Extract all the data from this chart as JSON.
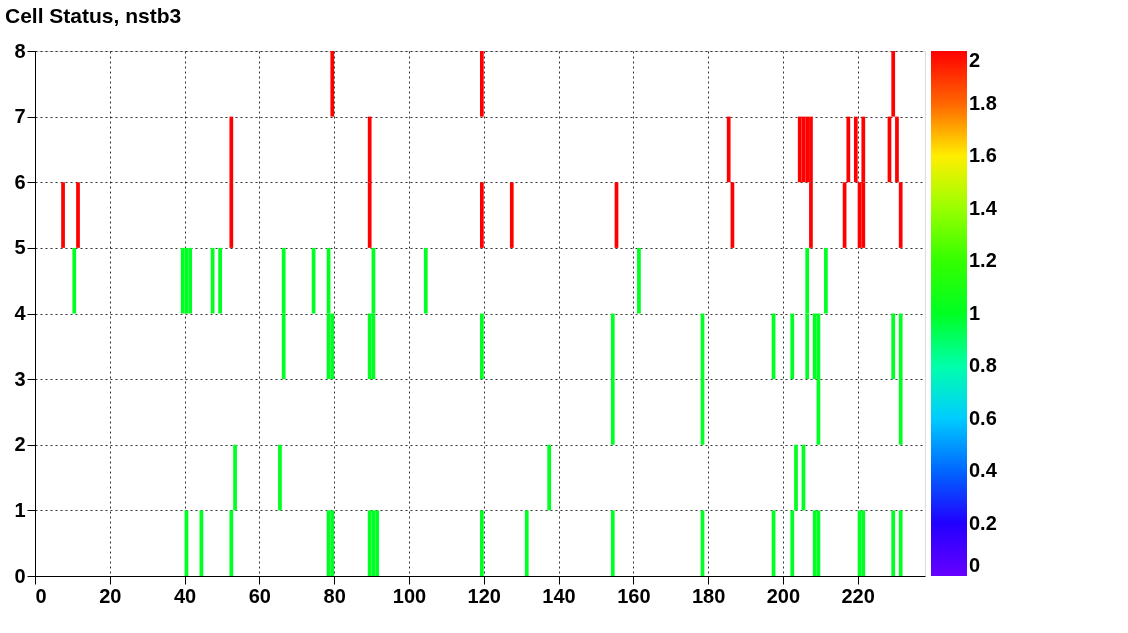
{
  "chart_data": {
    "type": "heatmap",
    "title": "Cell Status, nstb3",
    "cells": [
      [
        null,
        null,
        null,
        null,
        null,
        null,
        null,
        null,
        null,
        null,
        null,
        null,
        null,
        null,
        null,
        null,
        null,
        null,
        null,
        null,
        null,
        null,
        null,
        null,
        null,
        null,
        null,
        null,
        null,
        null,
        null,
        null,
        null,
        null,
        null,
        null,
        null,
        null,
        null,
        null,
        null,
        null,
        null,
        null,
        null,
        null,
        null,
        null,
        null,
        null,
        null,
        null,
        null,
        null,
        null,
        null,
        null,
        null,
        null,
        null,
        null,
        null,
        null,
        null,
        null,
        null,
        null,
        null,
        null,
        null,
        null,
        null,
        null,
        null,
        null,
        null,
        null,
        null,
        null,
        2,
        null,
        null,
        null,
        null,
        null,
        null,
        null,
        null,
        null,
        null,
        null,
        null,
        null,
        null,
        null,
        null,
        null,
        null,
        null,
        null,
        null,
        null,
        null,
        null,
        null,
        null,
        null,
        null,
        null,
        null,
        null,
        null,
        null,
        null,
        null,
        null,
        null,
        null,
        null,
        2,
        null,
        null,
        null,
        null,
        null,
        null,
        null,
        null,
        null,
        null,
        null,
        null,
        null,
        null,
        null,
        null,
        null,
        null,
        null,
        null,
        null,
        null,
        null,
        null,
        null,
        null,
        null,
        null,
        null,
        null,
        null,
        null,
        null,
        null,
        null,
        null,
        null,
        null,
        null,
        null,
        null,
        null,
        null,
        null,
        null,
        null,
        null,
        null,
        null,
        null,
        null,
        null,
        null,
        null,
        null,
        null,
        null,
        null,
        null,
        null,
        null,
        null,
        null,
        null,
        null,
        null,
        null,
        null,
        null,
        null,
        null,
        null,
        null,
        null,
        null,
        null,
        null,
        null,
        null,
        null,
        null,
        null,
        null,
        null,
        null,
        null,
        null,
        null,
        null,
        null,
        null,
        null,
        null,
        null,
        null,
        null,
        null,
        null,
        null,
        null,
        null,
        null,
        null,
        null,
        null,
        null,
        null,
        null,
        null,
        2,
        null,
        null,
        null,
        null,
        null,
        null,
        null,
        null
      ],
      [
        null,
        null,
        null,
        null,
        null,
        null,
        null,
        null,
        null,
        null,
        null,
        null,
        null,
        null,
        null,
        null,
        null,
        null,
        null,
        null,
        null,
        null,
        null,
        null,
        null,
        null,
        null,
        null,
        null,
        null,
        null,
        null,
        null,
        null,
        null,
        null,
        null,
        null,
        null,
        null,
        null,
        null,
        null,
        null,
        null,
        null,
        null,
        null,
        null,
        null,
        null,
        null,
        2,
        null,
        null,
        null,
        null,
        null,
        null,
        null,
        null,
        null,
        null,
        null,
        null,
        null,
        null,
        null,
        null,
        null,
        null,
        null,
        null,
        null,
        null,
        null,
        null,
        null,
        null,
        null,
        null,
        null,
        null,
        null,
        null,
        null,
        null,
        null,
        null,
        2,
        null,
        null,
        null,
        null,
        null,
        null,
        null,
        null,
        null,
        null,
        null,
        null,
        null,
        null,
        null,
        null,
        null,
        null,
        null,
        null,
        null,
        null,
        null,
        null,
        null,
        null,
        null,
        null,
        null,
        null,
        null,
        null,
        null,
        null,
        null,
        null,
        null,
        null,
        null,
        null,
        null,
        null,
        null,
        null,
        null,
        null,
        null,
        null,
        null,
        null,
        null,
        null,
        null,
        null,
        null,
        null,
        null,
        null,
        null,
        null,
        null,
        null,
        null,
        null,
        null,
        null,
        null,
        null,
        null,
        null,
        null,
        null,
        null,
        null,
        null,
        null,
        null,
        null,
        null,
        null,
        null,
        null,
        null,
        null,
        null,
        null,
        null,
        null,
        null,
        null,
        null,
        null,
        null,
        null,
        null,
        2,
        null,
        null,
        null,
        null,
        null,
        null,
        null,
        null,
        null,
        null,
        null,
        null,
        null,
        null,
        null,
        null,
        null,
        null,
        2,
        2,
        2,
        2,
        null,
        null,
        null,
        null,
        null,
        null,
        null,
        null,
        null,
        2,
        null,
        2,
        null,
        2,
        null,
        null,
        null,
        null,
        null,
        null,
        2,
        null,
        2,
        null,
        null,
        null,
        null,
        null,
        null,
        null
      ],
      [
        null,
        null,
        null,
        null,
        null,
        null,
        null,
        2,
        null,
        null,
        null,
        2,
        null,
        null,
        null,
        null,
        null,
        null,
        null,
        null,
        null,
        null,
        null,
        null,
        null,
        null,
        null,
        null,
        null,
        null,
        null,
        null,
        null,
        null,
        null,
        null,
        null,
        null,
        null,
        null,
        null,
        null,
        null,
        null,
        null,
        null,
        null,
        null,
        null,
        null,
        null,
        null,
        2,
        null,
        null,
        null,
        null,
        null,
        null,
        null,
        null,
        null,
        null,
        null,
        null,
        null,
        null,
        null,
        null,
        null,
        null,
        null,
        null,
        null,
        null,
        null,
        null,
        null,
        null,
        null,
        null,
        null,
        null,
        null,
        null,
        null,
        null,
        null,
        null,
        2,
        null,
        null,
        null,
        null,
        null,
        null,
        null,
        null,
        null,
        null,
        null,
        null,
        null,
        null,
        null,
        null,
        null,
        null,
        null,
        null,
        null,
        null,
        null,
        null,
        null,
        null,
        null,
        null,
        null,
        2,
        null,
        null,
        null,
        null,
        null,
        null,
        null,
        2,
        null,
        null,
        null,
        null,
        null,
        null,
        null,
        null,
        null,
        null,
        null,
        null,
        null,
        null,
        null,
        null,
        null,
        null,
        null,
        null,
        null,
        null,
        null,
        null,
        null,
        null,
        null,
        2,
        null,
        null,
        null,
        null,
        null,
        null,
        null,
        null,
        null,
        null,
        null,
        null,
        null,
        null,
        null,
        null,
        null,
        null,
        null,
        null,
        null,
        null,
        null,
        null,
        null,
        null,
        null,
        null,
        null,
        null,
        2,
        null,
        null,
        null,
        null,
        null,
        null,
        null,
        null,
        null,
        null,
        null,
        null,
        null,
        null,
        null,
        null,
        null,
        null,
        null,
        null,
        2,
        null,
        null,
        null,
        null,
        null,
        null,
        null,
        null,
        2,
        null,
        null,
        null,
        2,
        2,
        null,
        null,
        null,
        null,
        null,
        null,
        null,
        null,
        null,
        2,
        null,
        null,
        null,
        null,
        null,
        null
      ],
      [
        null,
        null,
        null,
        null,
        null,
        null,
        null,
        null,
        null,
        null,
        1,
        null,
        null,
        null,
        null,
        null,
        null,
        null,
        null,
        null,
        null,
        null,
        null,
        null,
        null,
        null,
        null,
        null,
        null,
        null,
        null,
        null,
        null,
        null,
        null,
        null,
        null,
        null,
        null,
        1,
        1,
        1,
        null,
        null,
        null,
        null,
        null,
        1,
        null,
        1,
        null,
        null,
        null,
        null,
        null,
        null,
        null,
        null,
        null,
        null,
        null,
        null,
        null,
        null,
        null,
        null,
        1,
        null,
        null,
        null,
        null,
        null,
        null,
        null,
        1,
        null,
        null,
        null,
        1,
        null,
        null,
        null,
        null,
        null,
        null,
        null,
        null,
        null,
        null,
        null,
        1,
        null,
        null,
        null,
        null,
        null,
        null,
        null,
        null,
        null,
        null,
        null,
        null,
        null,
        1,
        null,
        null,
        null,
        null,
        null,
        null,
        null,
        null,
        null,
        null,
        null,
        null,
        null,
        null,
        null,
        null,
        null,
        null,
        null,
        null,
        null,
        null,
        null,
        null,
        null,
        null,
        null,
        null,
        null,
        null,
        null,
        null,
        null,
        null,
        null,
        null,
        null,
        null,
        null,
        null,
        null,
        null,
        null,
        null,
        null,
        null,
        null,
        null,
        null,
        null,
        null,
        null,
        null,
        null,
        null,
        null,
        1,
        null,
        null,
        null,
        null,
        null,
        null,
        null,
        null,
        null,
        null,
        null,
        null,
        null,
        null,
        null,
        null,
        null,
        null,
        null,
        null,
        null,
        null,
        null,
        null,
        null,
        null,
        null,
        null,
        null,
        null,
        null,
        null,
        null,
        null,
        null,
        null,
        null,
        null,
        null,
        null,
        null,
        null,
        null,
        null,
        1,
        null,
        null,
        null,
        null,
        1,
        null,
        null,
        null,
        null,
        null,
        null,
        null,
        null,
        null,
        null,
        null,
        null,
        null,
        null,
        null,
        null,
        null,
        null,
        null,
        null,
        null,
        null,
        null,
        null,
        null,
        null
      ],
      [
        null,
        null,
        null,
        null,
        null,
        null,
        null,
        null,
        null,
        null,
        null,
        null,
        null,
        null,
        null,
        null,
        null,
        null,
        null,
        null,
        null,
        null,
        null,
        null,
        null,
        null,
        null,
        null,
        null,
        null,
        null,
        null,
        null,
        null,
        null,
        null,
        null,
        null,
        null,
        null,
        null,
        null,
        null,
        null,
        null,
        null,
        null,
        null,
        null,
        null,
        null,
        null,
        null,
        null,
        null,
        null,
        null,
        null,
        null,
        null,
        null,
        null,
        null,
        null,
        null,
        null,
        1,
        null,
        null,
        null,
        null,
        null,
        null,
        null,
        null,
        null,
        null,
        null,
        1,
        1,
        null,
        null,
        null,
        null,
        null,
        null,
        null,
        null,
        null,
        1,
        1,
        null,
        null,
        null,
        null,
        null,
        null,
        null,
        null,
        null,
        null,
        null,
        null,
        null,
        null,
        null,
        null,
        null,
        null,
        null,
        null,
        null,
        null,
        null,
        null,
        null,
        null,
        null,
        null,
        1,
        null,
        null,
        null,
        null,
        null,
        null,
        null,
        null,
        null,
        null,
        null,
        null,
        null,
        null,
        null,
        null,
        null,
        null,
        null,
        null,
        null,
        null,
        null,
        null,
        null,
        null,
        null,
        null,
        null,
        null,
        null,
        null,
        null,
        null,
        1,
        null,
        null,
        null,
        null,
        null,
        null,
        null,
        null,
        null,
        null,
        null,
        null,
        null,
        null,
        null,
        null,
        null,
        null,
        null,
        null,
        null,
        null,
        null,
        1,
        null,
        null,
        null,
        null,
        null,
        null,
        null,
        null,
        null,
        null,
        null,
        null,
        null,
        null,
        null,
        null,
        null,
        null,
        1,
        null,
        null,
        null,
        null,
        1,
        null,
        null,
        null,
        1,
        null,
        1,
        1,
        null,
        null,
        null,
        null,
        null,
        null,
        null,
        null,
        null,
        null,
        null,
        null,
        null,
        null,
        null,
        null,
        null,
        null,
        null,
        1,
        null,
        1,
        null,
        null,
        null,
        null,
        null,
        null
      ],
      [
        null,
        null,
        null,
        null,
        null,
        null,
        null,
        null,
        null,
        null,
        null,
        null,
        null,
        null,
        null,
        null,
        null,
        null,
        null,
        null,
        null,
        null,
        null,
        null,
        null,
        null,
        null,
        null,
        null,
        null,
        null,
        null,
        null,
        null,
        null,
        null,
        null,
        null,
        null,
        null,
        null,
        null,
        null,
        null,
        null,
        null,
        null,
        null,
        null,
        null,
        null,
        null,
        null,
        null,
        null,
        null,
        null,
        null,
        null,
        null,
        null,
        null,
        null,
        null,
        null,
        null,
        null,
        null,
        null,
        null,
        null,
        null,
        null,
        null,
        null,
        null,
        null,
        null,
        null,
        null,
        null,
        null,
        null,
        null,
        null,
        null,
        null,
        null,
        null,
        null,
        null,
        null,
        null,
        null,
        null,
        null,
        null,
        null,
        null,
        null,
        null,
        null,
        null,
        null,
        null,
        null,
        null,
        null,
        null,
        null,
        null,
        null,
        null,
        null,
        null,
        null,
        null,
        null,
        null,
        null,
        null,
        null,
        null,
        null,
        null,
        null,
        null,
        null,
        null,
        null,
        null,
        null,
        null,
        null,
        null,
        null,
        null,
        null,
        null,
        null,
        null,
        null,
        null,
        null,
        null,
        null,
        null,
        null,
        null,
        null,
        null,
        null,
        null,
        null,
        1,
        null,
        null,
        null,
        null,
        null,
        null,
        null,
        null,
        null,
        null,
        null,
        null,
        null,
        null,
        null,
        null,
        null,
        null,
        null,
        null,
        null,
        null,
        null,
        1,
        null,
        null,
        null,
        null,
        null,
        null,
        null,
        null,
        null,
        null,
        null,
        null,
        null,
        null,
        null,
        null,
        null,
        null,
        null,
        null,
        null,
        null,
        null,
        null,
        null,
        null,
        null,
        null,
        null,
        null,
        1,
        null,
        null,
        null,
        null,
        null,
        null,
        null,
        null,
        null,
        null,
        null,
        null,
        null,
        null,
        null,
        null,
        null,
        null,
        null,
        null,
        null,
        1,
        null,
        null,
        null,
        null,
        null,
        null
      ],
      [
        null,
        null,
        null,
        null,
        null,
        null,
        null,
        null,
        null,
        null,
        null,
        null,
        null,
        null,
        null,
        null,
        null,
        null,
        null,
        null,
        null,
        null,
        null,
        null,
        null,
        null,
        null,
        null,
        null,
        null,
        null,
        null,
        null,
        null,
        null,
        null,
        null,
        null,
        null,
        null,
        null,
        null,
        null,
        null,
        null,
        null,
        null,
        null,
        null,
        null,
        null,
        null,
        null,
        1,
        null,
        null,
        null,
        null,
        null,
        null,
        null,
        null,
        null,
        null,
        null,
        1,
        null,
        null,
        null,
        null,
        null,
        null,
        null,
        null,
        null,
        null,
        null,
        null,
        null,
        null,
        null,
        null,
        null,
        null,
        null,
        null,
        null,
        null,
        null,
        null,
        null,
        null,
        null,
        null,
        null,
        null,
        null,
        null,
        null,
        null,
        null,
        null,
        null,
        null,
        null,
        null,
        null,
        null,
        null,
        null,
        null,
        null,
        null,
        null,
        null,
        null,
        null,
        null,
        null,
        null,
        null,
        null,
        null,
        null,
        null,
        null,
        null,
        null,
        null,
        null,
        null,
        null,
        null,
        null,
        null,
        null,
        null,
        1,
        null,
        null,
        null,
        null,
        null,
        null,
        null,
        null,
        null,
        null,
        null,
        null,
        null,
        null,
        null,
        null,
        null,
        null,
        null,
        null,
        null,
        null,
        null,
        null,
        null,
        null,
        null,
        null,
        null,
        null,
        null,
        null,
        null,
        null,
        null,
        null,
        null,
        null,
        null,
        null,
        null,
        null,
        null,
        null,
        null,
        null,
        null,
        null,
        null,
        null,
        null,
        null,
        null,
        null,
        null,
        null,
        null,
        null,
        null,
        null,
        null,
        null,
        null,
        null,
        null,
        1,
        null,
        1,
        null,
        null,
        null,
        null,
        null,
        null,
        null,
        null,
        null,
        null,
        null,
        null,
        null,
        null,
        null,
        null,
        null,
        null,
        null,
        null,
        null,
        null,
        null,
        null,
        null,
        null,
        null,
        null,
        null,
        null,
        null,
        null
      ],
      [
        null,
        null,
        null,
        null,
        null,
        null,
        null,
        null,
        null,
        null,
        null,
        null,
        null,
        null,
        null,
        null,
        null,
        null,
        null,
        null,
        null,
        null,
        null,
        null,
        null,
        null,
        null,
        null,
        null,
        null,
        null,
        null,
        null,
        null,
        null,
        null,
        null,
        null,
        null,
        null,
        1,
        null,
        null,
        null,
        1,
        null,
        null,
        null,
        null,
        null,
        null,
        null,
        1,
        null,
        null,
        null,
        null,
        null,
        null,
        null,
        null,
        null,
        null,
        null,
        null,
        null,
        null,
        null,
        null,
        null,
        null,
        null,
        null,
        null,
        null,
        null,
        null,
        null,
        1,
        1,
        null,
        null,
        null,
        null,
        null,
        null,
        null,
        null,
        null,
        1,
        1,
        1,
        null,
        null,
        null,
        null,
        null,
        null,
        null,
        null,
        null,
        null,
        null,
        null,
        null,
        null,
        null,
        null,
        null,
        null,
        null,
        null,
        null,
        null,
        null,
        null,
        null,
        null,
        null,
        1,
        null,
        null,
        null,
        null,
        null,
        null,
        null,
        null,
        null,
        null,
        null,
        1,
        null,
        null,
        null,
        null,
        null,
        null,
        null,
        null,
        null,
        null,
        null,
        null,
        null,
        null,
        null,
        null,
        null,
        null,
        null,
        null,
        null,
        null,
        1,
        null,
        null,
        null,
        null,
        null,
        null,
        null,
        null,
        null,
        null,
        null,
        null,
        null,
        null,
        null,
        null,
        null,
        null,
        null,
        null,
        null,
        null,
        null,
        1,
        null,
        null,
        null,
        null,
        null,
        null,
        null,
        null,
        null,
        null,
        null,
        null,
        null,
        null,
        null,
        null,
        null,
        null,
        1,
        null,
        null,
        null,
        null,
        1,
        null,
        null,
        null,
        null,
        null,
        1,
        1,
        null,
        null,
        null,
        null,
        null,
        null,
        null,
        null,
        null,
        null,
        1,
        1,
        null,
        null,
        null,
        null,
        null,
        null,
        null,
        1,
        null,
        1,
        null,
        null,
        null,
        null,
        null,
        null
      ]
    ],
    "xlim": [
      0,
      238
    ],
    "xticks": [
      0,
      20,
      40,
      60,
      80,
      100,
      120,
      140,
      160,
      180,
      200,
      220
    ],
    "ylim": [
      0,
      8
    ],
    "yticks": [
      0,
      1,
      2,
      3,
      4,
      5,
      6,
      7,
      8
    ],
    "clim": [
      0,
      2
    ],
    "cticks": [
      0,
      0.2,
      0.4,
      0.6,
      0.8,
      1,
      1.2,
      1.4,
      1.6,
      1.8,
      2
    ],
    "grid": true
  }
}
